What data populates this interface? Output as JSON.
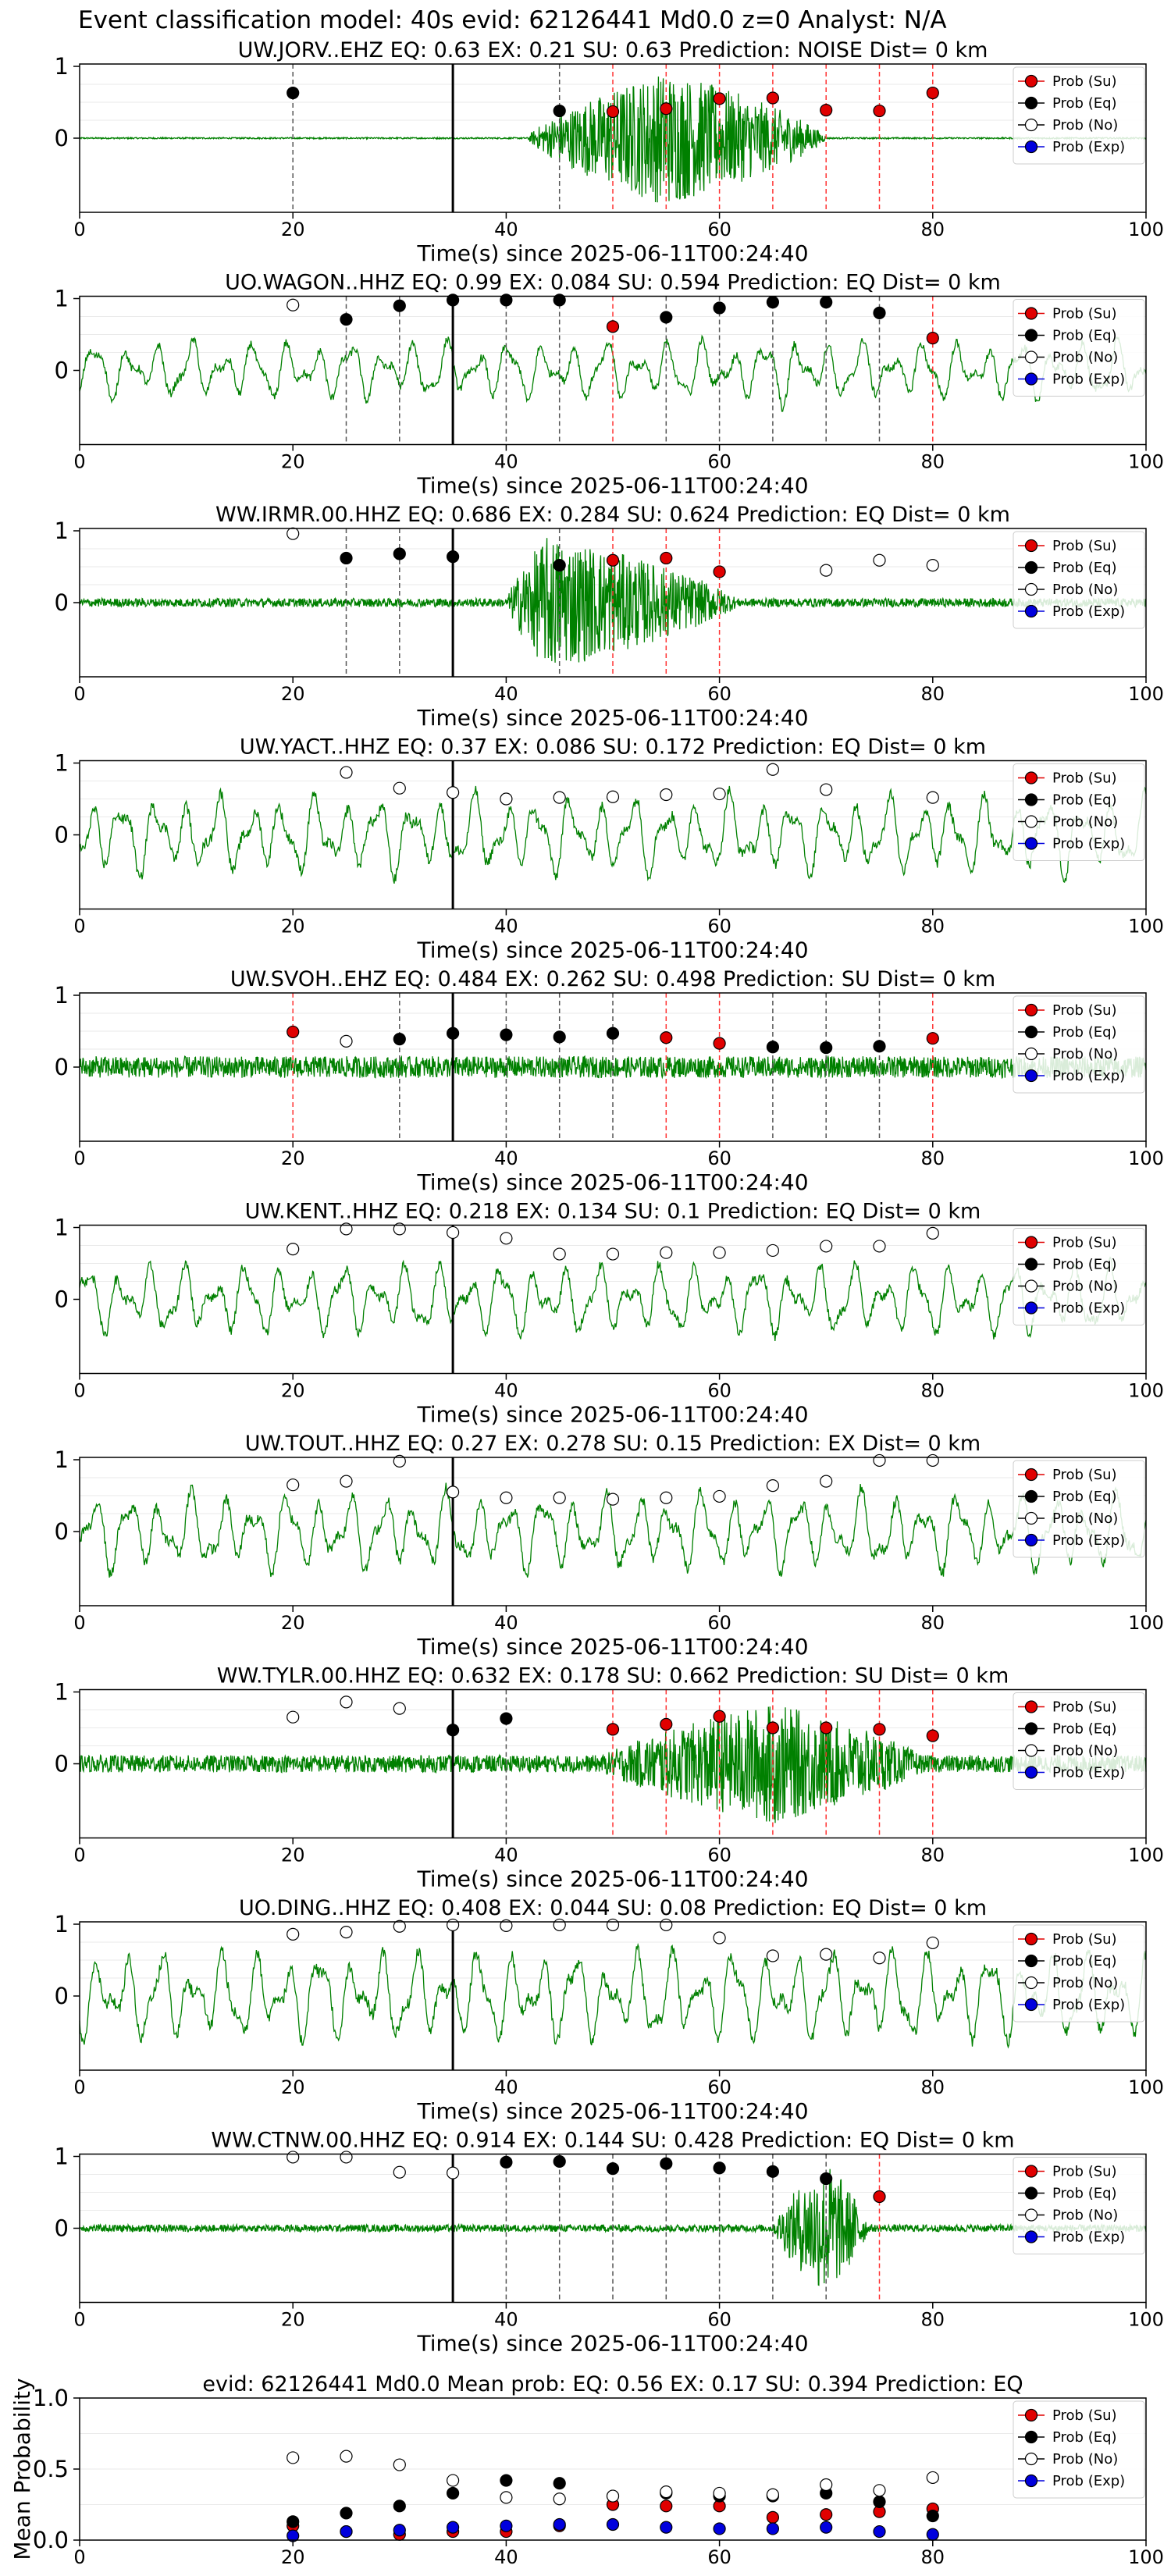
{
  "figure_title": "Event classification model: 40s evid: 62126441 Md0.0 z=0 Analyst: N/A",
  "legend": [
    "Prob (Su)",
    "Prob (Eq)",
    "Prob (No)",
    "Prob (Exp)"
  ],
  "x_axis_label": "Time(s) since 2025-06-11T00:24:40",
  "colors": {
    "su": "#e00000",
    "eq": "#000000",
    "no": "#ffffff",
    "exp": "#0000dd",
    "trace": "#008000",
    "su_line": "#ff3333",
    "eq_line": "#555555"
  },
  "chart_data": [
    {
      "type": "line",
      "title": "UW.JORV..EHZ   EQ: 0.63  EX: 0.21  SU: 0.63   Prediction: NOISE    Dist= 0 km",
      "xlim": [
        0,
        100
      ],
      "xticks": [
        0,
        20,
        40,
        60,
        80,
        100
      ],
      "yticks": [
        0,
        1
      ],
      "trace": {
        "energy_start": 42,
        "energy_peak": 55,
        "energy_end": 70,
        "peak_amp": 0.95,
        "background_amp": 0.01,
        "style": "noise"
      },
      "eq": {
        "x": [
          20,
          45
        ],
        "y": [
          0.63,
          0.38
        ]
      },
      "su": {
        "x": [
          50,
          55,
          60,
          65,
          70,
          75,
          80
        ],
        "y": [
          0.37,
          0.41,
          0.55,
          0.56,
          0.39,
          0.38,
          0.63
        ]
      },
      "no": {
        "x": [],
        "y": []
      },
      "pick_x": 35
    },
    {
      "type": "line",
      "title": "UO.WAGON..HHZ   EQ: 0.99  EX: 0.084  SU: 0.594   Prediction: EQ    Dist= 0 km",
      "xlim": [
        0,
        100
      ],
      "xticks": [
        0,
        20,
        40,
        60,
        80,
        100
      ],
      "yticks": [
        0,
        1
      ],
      "trace": {
        "energy_start": 60,
        "energy_peak": 67,
        "energy_end": 72,
        "peak_amp": 0.6,
        "background_amp": 0.45,
        "style": "wave"
      },
      "eq": {
        "x": [
          25,
          30,
          35,
          40,
          45,
          55,
          60,
          65,
          70,
          75
        ],
        "y": [
          0.71,
          0.9,
          0.98,
          0.98,
          0.98,
          0.74,
          0.87,
          0.95,
          0.95,
          0.8
        ]
      },
      "su": {
        "x": [
          50,
          80
        ],
        "y": [
          0.61,
          0.45
        ]
      },
      "no": {
        "x": [
          20
        ],
        "y": [
          0.91
        ]
      },
      "pick_x": 35
    },
    {
      "type": "line",
      "title": "WW.IRMR.00.HHZ   EQ: 0.686  EX: 0.284  SU: 0.624   Prediction: EQ    Dist= 0 km",
      "xlim": [
        0,
        100
      ],
      "xticks": [
        0,
        20,
        40,
        60,
        80,
        100
      ],
      "yticks": [
        0,
        1
      ],
      "trace": {
        "energy_start": 40,
        "energy_peak": 44,
        "energy_end": 62,
        "peak_amp": 0.95,
        "background_amp": 0.06,
        "style": "noise"
      },
      "eq": {
        "x": [
          25,
          30,
          35,
          45
        ],
        "y": [
          0.62,
          0.68,
          0.64,
          0.52
        ]
      },
      "su": {
        "x": [
          50,
          55,
          60
        ],
        "y": [
          0.59,
          0.62,
          0.43
        ]
      },
      "no": {
        "x": [
          20,
          70,
          75,
          80
        ],
        "y": [
          0.96,
          0.45,
          0.59,
          0.52
        ]
      },
      "pick_x": 35
    },
    {
      "type": "line",
      "title": "UW.YACT..HHZ   EQ: 0.37  EX: 0.086  SU: 0.172   Prediction: EQ    Dist= 0 km",
      "xlim": [
        0,
        100
      ],
      "xticks": [
        0,
        20,
        40,
        60,
        80,
        100
      ],
      "yticks": [
        0,
        1
      ],
      "trace": {
        "energy_start": 0,
        "energy_peak": 55,
        "energy_end": 0,
        "peak_amp": 0,
        "background_amp": 0.6,
        "style": "wave"
      },
      "eq": {
        "x": [],
        "y": []
      },
      "su": {
        "x": [],
        "y": []
      },
      "no": {
        "x": [
          25,
          30,
          35,
          40,
          45,
          50,
          55,
          60,
          65,
          70,
          80
        ],
        "y": [
          0.87,
          0.65,
          0.59,
          0.5,
          0.52,
          0.53,
          0.56,
          0.57,
          0.91,
          0.63,
          0.52
        ]
      },
      "pick_x": 35
    },
    {
      "type": "line",
      "title": "UW.SVOH..EHZ   EQ: 0.484  EX: 0.262  SU: 0.498   Prediction: SU    Dist= 0 km",
      "xlim": [
        0,
        100
      ],
      "xticks": [
        0,
        20,
        40,
        60,
        80,
        100
      ],
      "yticks": [
        0,
        1
      ],
      "trace": {
        "energy_start": 0,
        "energy_peak": 20,
        "energy_end": 0,
        "peak_amp": 0,
        "background_amp": 0.15,
        "style": "noise"
      },
      "eq": {
        "x": [
          30,
          35,
          40,
          45,
          50,
          65,
          70,
          75
        ],
        "y": [
          0.39,
          0.47,
          0.45,
          0.42,
          0.47,
          0.28,
          0.27,
          0.29
        ]
      },
      "su": {
        "x": [
          20,
          55,
          60,
          80
        ],
        "y": [
          0.49,
          0.41,
          0.33,
          0.4
        ]
      },
      "no": {
        "x": [
          25
        ],
        "y": [
          0.36
        ]
      },
      "pick_x": 35
    },
    {
      "type": "line",
      "title": "UW.KENT..HHZ   EQ: 0.218  EX: 0.134  SU: 0.1   Prediction: EQ    Dist= 0 km",
      "xlim": [
        0,
        100
      ],
      "xticks": [
        0,
        20,
        40,
        60,
        80,
        100
      ],
      "yticks": [
        0,
        1
      ],
      "trace": {
        "energy_start": 0,
        "energy_peak": 35,
        "energy_end": 0,
        "peak_amp": 0,
        "background_amp": 0.55,
        "style": "wave"
      },
      "eq": {
        "x": [],
        "y": []
      },
      "su": {
        "x": [],
        "y": []
      },
      "no": {
        "x": [
          20,
          25,
          30,
          35,
          40,
          45,
          50,
          55,
          60,
          65,
          70,
          75,
          80
        ],
        "y": [
          0.7,
          0.98,
          0.98,
          0.93,
          0.85,
          0.63,
          0.63,
          0.65,
          0.65,
          0.68,
          0.74,
          0.74,
          0.92
        ]
      },
      "pick_x": 35
    },
    {
      "type": "line",
      "title": "UW.TOUT..HHZ   EQ: 0.27  EX: 0.278  SU: 0.15   Prediction: EX    Dist= 0 km",
      "xlim": [
        0,
        100
      ],
      "xticks": [
        0,
        20,
        40,
        60,
        80,
        100
      ],
      "yticks": [
        0,
        1
      ],
      "trace": {
        "energy_start": 0,
        "energy_peak": 45,
        "energy_end": 0,
        "peak_amp": 0,
        "background_amp": 0.6,
        "style": "wave"
      },
      "eq": {
        "x": [],
        "y": []
      },
      "su": {
        "x": [],
        "y": []
      },
      "no": {
        "x": [
          20,
          25,
          30,
          35,
          40,
          45,
          50,
          55,
          60,
          65,
          70,
          75,
          80
        ],
        "y": [
          0.65,
          0.7,
          0.98,
          0.55,
          0.47,
          0.47,
          0.45,
          0.47,
          0.49,
          0.64,
          0.7,
          0.99,
          0.99
        ]
      },
      "pick_x": 35
    },
    {
      "type": "line",
      "title": "WW.TYLR.00.HHZ   EQ: 0.632  EX: 0.178  SU: 0.662   Prediction: SU    Dist= 0 km",
      "xlim": [
        0,
        100
      ],
      "xticks": [
        0,
        20,
        40,
        60,
        80,
        100
      ],
      "yticks": [
        0,
        1
      ],
      "trace": {
        "energy_start": 48,
        "energy_peak": 65,
        "energy_end": 80,
        "peak_amp": 0.85,
        "background_amp": 0.12,
        "style": "noise"
      },
      "eq": {
        "x": [
          35,
          40
        ],
        "y": [
          0.47,
          0.63
        ]
      },
      "su": {
        "x": [
          50,
          55,
          60,
          65,
          70,
          75,
          80
        ],
        "y": [
          0.48,
          0.55,
          0.66,
          0.5,
          0.5,
          0.48,
          0.39
        ]
      },
      "no": {
        "x": [
          20,
          25,
          30
        ],
        "y": [
          0.65,
          0.86,
          0.77
        ]
      },
      "pick_x": 35
    },
    {
      "type": "line",
      "title": "UO.DING..HHZ   EQ: 0.408  EX: 0.044  SU: 0.08   Prediction: EQ    Dist= 0 km",
      "xlim": [
        0,
        100
      ],
      "xticks": [
        0,
        20,
        40,
        60,
        80,
        100
      ],
      "yticks": [
        0,
        1
      ],
      "trace": {
        "energy_start": 0,
        "energy_peak": 35,
        "energy_end": 0,
        "peak_amp": 0,
        "background_amp": 0.7,
        "style": "wave"
      },
      "eq": {
        "x": [],
        "y": []
      },
      "su": {
        "x": [],
        "y": []
      },
      "no": {
        "x": [
          20,
          25,
          30,
          35,
          40,
          45,
          50,
          55,
          60,
          65,
          70,
          75,
          80
        ],
        "y": [
          0.86,
          0.89,
          0.97,
          0.99,
          0.98,
          0.99,
          0.99,
          0.99,
          0.81,
          0.56,
          0.58,
          0.53,
          0.74
        ]
      },
      "pick_x": 35
    },
    {
      "type": "line",
      "title": "WW.CTNW.00.HHZ   EQ: 0.914  EX: 0.144  SU: 0.428   Prediction: EQ    Dist= 0 km",
      "xlim": [
        0,
        100
      ],
      "xticks": [
        0,
        20,
        40,
        60,
        80,
        100
      ],
      "yticks": [
        0,
        1
      ],
      "trace": {
        "energy_start": 65,
        "energy_peak": 70,
        "energy_end": 74,
        "peak_amp": 0.95,
        "background_amp": 0.05,
        "style": "noise"
      },
      "eq": {
        "x": [
          40,
          45,
          50,
          55,
          60,
          65,
          70
        ],
        "y": [
          0.92,
          0.93,
          0.83,
          0.9,
          0.84,
          0.79,
          0.69
        ]
      },
      "su": {
        "x": [
          75
        ],
        "y": [
          0.44
        ]
      },
      "no": {
        "x": [
          20,
          25,
          30,
          35
        ],
        "y": [
          0.99,
          0.99,
          0.78,
          0.77
        ]
      },
      "pick_x": 35
    },
    {
      "type": "scatter",
      "title": "evid: 62126441  Md0.0   Mean prob:   EQ: 0.56  EX: 0.17  SU: 0.394   Prediction: EQ",
      "ylabel": "Mean Probability",
      "xlim": [
        0,
        100
      ],
      "ylim": [
        0,
        1
      ],
      "xticks": [
        0,
        20,
        40,
        60,
        80,
        100
      ],
      "yticks": [
        0.0,
        0.5,
        1.0
      ],
      "series": [
        {
          "name": "Prob (Su)",
          "x": [
            20,
            25,
            30,
            35,
            40,
            45,
            50,
            55,
            60,
            65,
            70,
            75,
            80
          ],
          "y": [
            0.1,
            0.06,
            0.04,
            0.06,
            0.06,
            0.1,
            0.25,
            0.24,
            0.24,
            0.16,
            0.18,
            0.2,
            0.22
          ]
        },
        {
          "name": "Prob (Eq)",
          "x": [
            20,
            25,
            30,
            35,
            40,
            45,
            50,
            55,
            60,
            65,
            70,
            75,
            80
          ],
          "y": [
            0.13,
            0.19,
            0.24,
            0.33,
            0.42,
            0.4,
            0.31,
            0.33,
            0.31,
            0.31,
            0.33,
            0.27,
            0.17
          ]
        },
        {
          "name": "Prob (No)",
          "x": [
            20,
            25,
            30,
            35,
            40,
            45,
            50,
            55,
            60,
            65,
            70,
            75,
            80
          ],
          "y": [
            0.58,
            0.59,
            0.53,
            0.42,
            0.3,
            0.29,
            0.31,
            0.34,
            0.33,
            0.32,
            0.39,
            0.35,
            0.44
          ]
        },
        {
          "name": "Prob (Exp)",
          "x": [
            20,
            25,
            30,
            35,
            40,
            45,
            50,
            55,
            60,
            65,
            70,
            75,
            80
          ],
          "y": [
            0.03,
            0.06,
            0.07,
            0.09,
            0.1,
            0.11,
            0.11,
            0.09,
            0.08,
            0.08,
            0.09,
            0.06,
            0.04
          ]
        }
      ]
    }
  ]
}
